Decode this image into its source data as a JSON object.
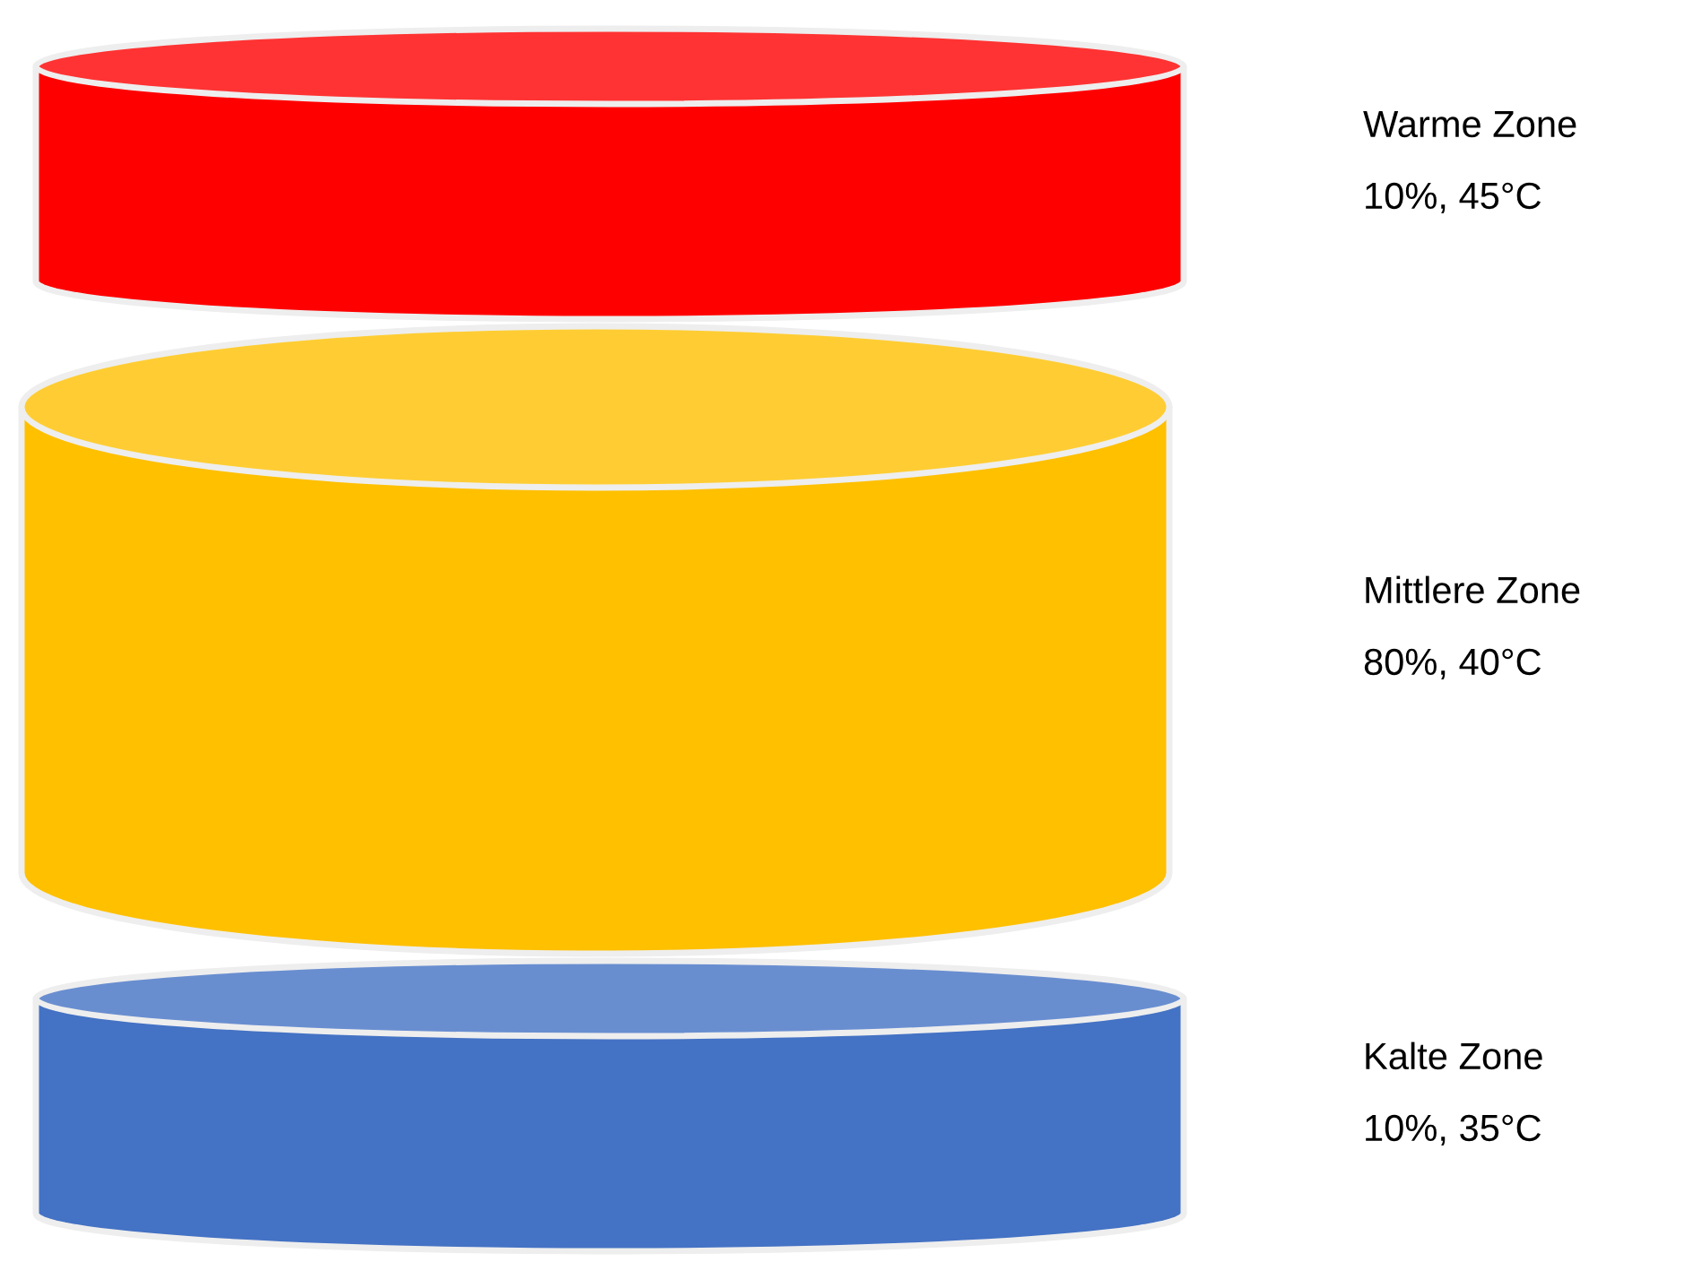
{
  "chart_data": {
    "type": "other",
    "categories": [
      "Warme Zone",
      "Mittlere Zone",
      "Kalte Zone"
    ],
    "values": [
      10,
      80,
      10
    ],
    "value_labels": [
      "10%, 45°C",
      "80%, 40°C",
      "10%, 35°C"
    ],
    "colors": [
      "#ff0000",
      "#ffc000",
      "#4472c4"
    ]
  }
}
